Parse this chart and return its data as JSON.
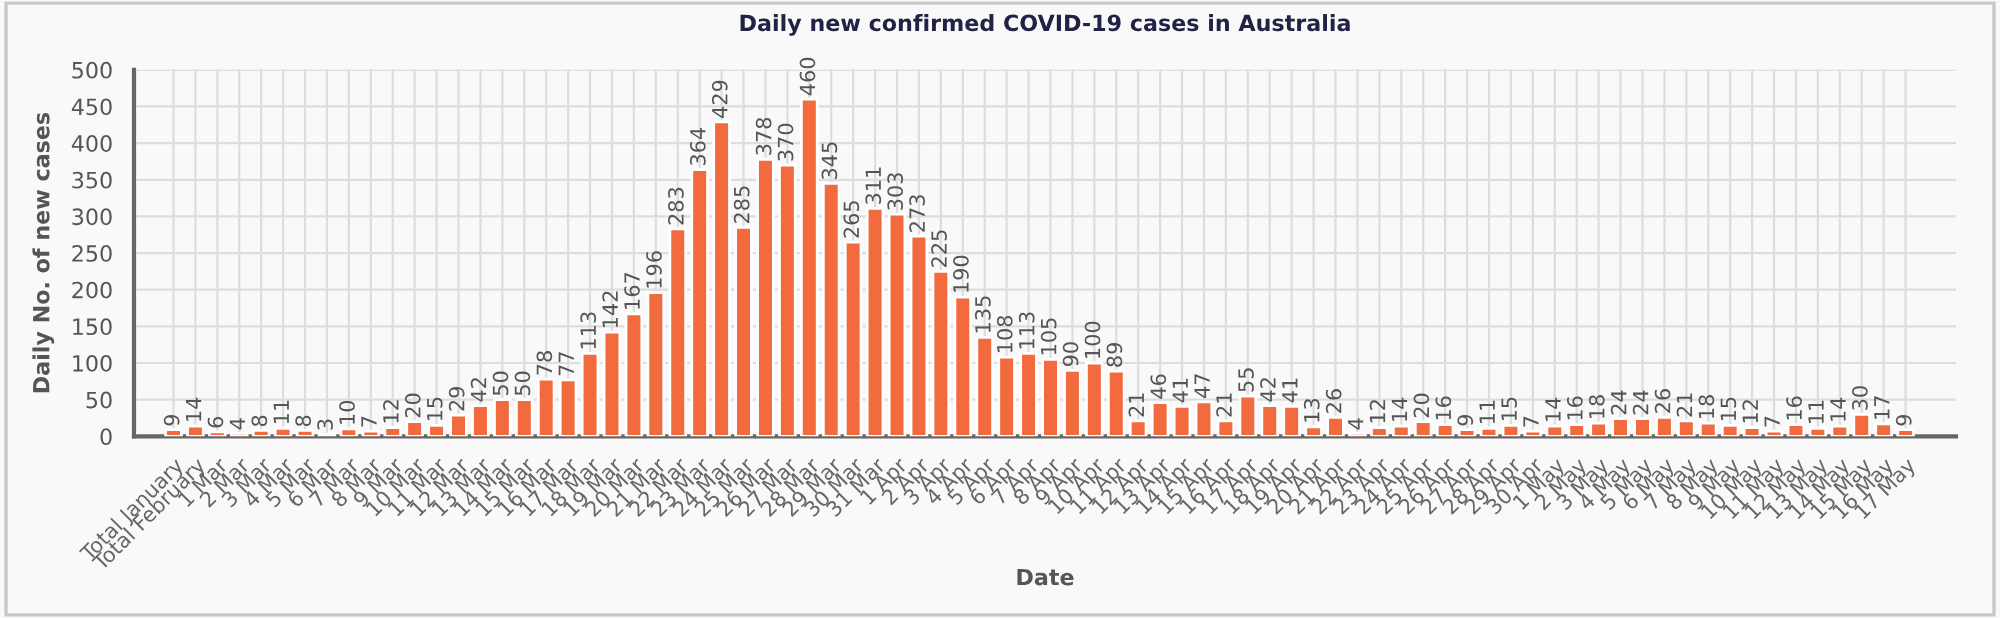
{
  "chart_data": {
    "type": "bar",
    "title": "Daily new confirmed COVID-19 cases in Australia",
    "xlabel": "Date",
    "ylabel": "Daily No. of new cases",
    "categories": [
      "Total January",
      "Total February",
      "1 Mar",
      "2 Mar",
      "3 Mar",
      "4 Mar",
      "5 Mar",
      "6 Mar",
      "7 Mar",
      "8 Mar",
      "9 Mar",
      "10 Mar",
      "11 Mar",
      "12 Mar",
      "13 Mar",
      "14 Mar",
      "15 Mar",
      "16 Mar",
      "17 Mar",
      "18 Mar",
      "19 Mar",
      "20 Mar",
      "21 Mar",
      "22 Mar",
      "23 Mar",
      "24 Mar",
      "25 Mar",
      "26 Mar",
      "27 Mar",
      "28 Mar",
      "29 Mar",
      "30 Mar",
      "31 Mar",
      "1 Apr",
      "2 Apr",
      "3 Apr",
      "4 Apr",
      "5 Apr",
      "6 Apr",
      "7 Apr",
      "8 Apr",
      "9 Apr",
      "10 Apr",
      "11 Apr",
      "12 Apr",
      "13 Apr",
      "14 Apr",
      "15 Apr",
      "16 Apr",
      "17 Apr",
      "18 Apr",
      "19 Apr",
      "20 Apr",
      "21 Apr",
      "22 Apr",
      "23 Apr",
      "24 Apr",
      "25 Apr",
      "26 Apr",
      "27 Apr",
      "28 Apr",
      "29 Apr",
      "30 Apr",
      "1 May",
      "2 May",
      "3 May",
      "4 May",
      "5 May",
      "6 May",
      "7 May",
      "8 May",
      "9 May",
      "10 May",
      "11 May",
      "12 May",
      "13 May",
      "14 May",
      "15 May",
      "16 May",
      "17 May"
    ],
    "values": [
      9,
      14,
      6,
      4,
      8,
      11,
      8,
      3,
      10,
      7,
      12,
      20,
      15,
      29,
      42,
      50,
      50,
      78,
      77,
      113,
      142,
      167,
      196,
      283,
      364,
      429,
      285,
      378,
      370,
      460,
      345,
      265,
      311,
      303,
      273,
      225,
      190,
      135,
      108,
      113,
      105,
      90,
      100,
      89,
      21,
      46,
      41,
      47,
      21,
      55,
      42,
      41,
      13,
      26,
      4,
      12,
      14,
      20,
      16,
      9,
      11,
      15,
      7,
      14,
      16,
      18,
      24,
      24,
      26,
      21,
      18,
      15,
      12,
      7,
      16,
      11,
      14,
      30,
      17,
      9
    ],
    "color": "#f26b3f",
    "ylim": [
      0,
      500
    ],
    "yticks": [
      0,
      50,
      100,
      150,
      200,
      250,
      300,
      350,
      400,
      450,
      500
    ],
    "grid": true,
    "data_labels": true
  }
}
